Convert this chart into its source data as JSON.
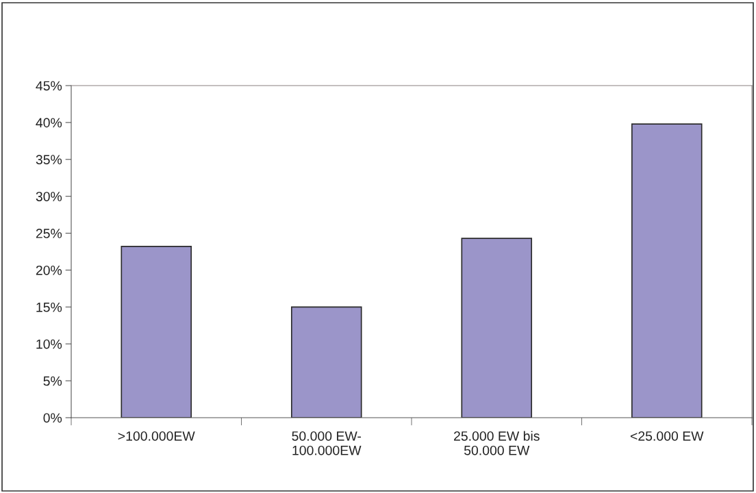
{
  "chart_data": {
    "type": "bar",
    "categories": [
      ">100.000EW",
      "50.000 EW-\n100.000EW",
      "25.000 EW bis\n50.000 EW",
      "<25.000 EW"
    ],
    "values": [
      23.2,
      15.0,
      24.3,
      39.8
    ],
    "color": "#9b95c9",
    "ylim": [
      0,
      45
    ],
    "yticks": [
      {
        "value": 0,
        "label": "0%"
      },
      {
        "value": 5,
        "label": "5%"
      },
      {
        "value": 10,
        "label": "10%"
      },
      {
        "value": 15,
        "label": "15%"
      },
      {
        "value": 20,
        "label": "20%"
      },
      {
        "value": 25,
        "label": "25%"
      },
      {
        "value": 30,
        "label": "30%"
      },
      {
        "value": 35,
        "label": "35%"
      },
      {
        "value": 40,
        "label": "40%"
      },
      {
        "value": 45,
        "label": "45%"
      }
    ],
    "grid": false,
    "legend": false
  }
}
